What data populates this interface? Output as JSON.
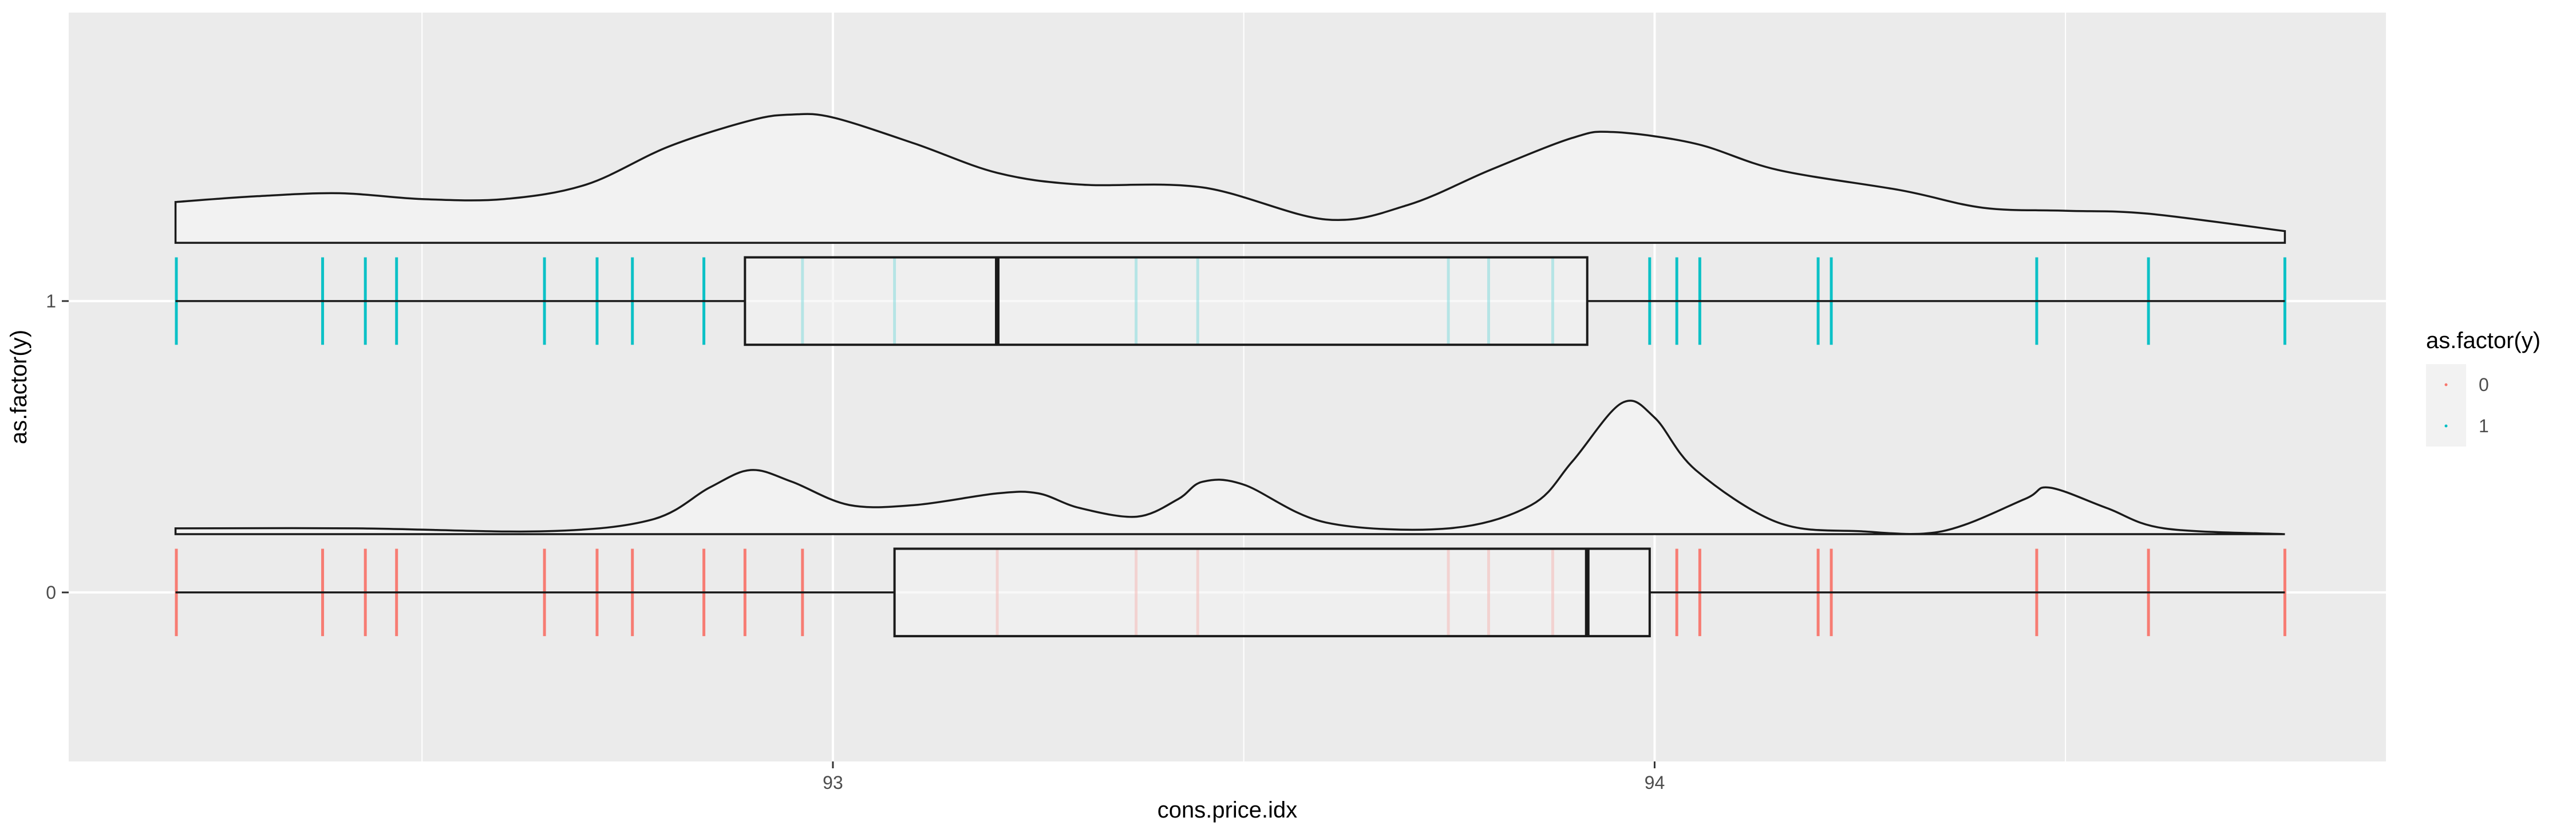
{
  "chart_data": {
    "type": "boxplot-with-density-and-jitter",
    "xlabel": "cons.price.idx",
    "ylabel": "as.factor(y)",
    "x_ticks": [
      93,
      94
    ],
    "x_tick_labels": [
      "93",
      "94"
    ],
    "y_categories": [
      "0",
      "1"
    ],
    "xlim": [
      92.07,
      94.89
    ],
    "ylim": [
      -0.58,
      1.99
    ],
    "grid": true,
    "legend": {
      "title": "as.factor(y)",
      "position": "right",
      "entries": [
        {
          "label": "0",
          "color": "#F8766D"
        },
        {
          "label": "1",
          "color": "#00BFC4"
        }
      ]
    },
    "series": [
      {
        "name": "0",
        "color": "#F8766D",
        "boxplot": {
          "min": 92.2,
          "q1": 93.075,
          "median": 93.918,
          "q3": 93.994,
          "max": 94.767
        },
        "jitter_x": [
          92.201,
          92.379,
          92.431,
          92.469,
          92.649,
          92.713,
          92.756,
          92.843,
          92.893,
          92.963,
          93.2,
          93.369,
          93.444,
          93.749,
          93.798,
          93.876,
          94.027,
          94.055,
          94.199,
          94.215,
          94.465,
          94.601,
          94.767
        ],
        "density_x": [
          92.2,
          92.42,
          92.65,
          92.78,
          92.85,
          92.9,
          92.95,
          93.02,
          93.1,
          93.2,
          93.25,
          93.3,
          93.37,
          93.42,
          93.45,
          93.5,
          93.6,
          93.75,
          93.85,
          93.9,
          93.96,
          94.0,
          94.05,
          94.15,
          94.25,
          94.35,
          94.45,
          94.48,
          94.55,
          94.62,
          94.767
        ],
        "density_y": [
          0.22,
          0.22,
          0.21,
          0.25,
          0.36,
          0.42,
          0.38,
          0.3,
          0.3,
          0.34,
          0.34,
          0.29,
          0.26,
          0.32,
          0.38,
          0.37,
          0.24,
          0.22,
          0.3,
          0.45,
          0.65,
          0.6,
          0.42,
          0.24,
          0.21,
          0.21,
          0.32,
          0.36,
          0.29,
          0.22,
          0.2
        ]
      },
      {
        "name": "1",
        "color": "#00BFC4",
        "boxplot": {
          "min": 92.2,
          "q1": 92.893,
          "median": 93.2,
          "q3": 93.918,
          "max": 94.767
        },
        "jitter_x": [
          92.201,
          92.379,
          92.431,
          92.469,
          92.649,
          92.713,
          92.756,
          92.843,
          92.963,
          93.075,
          93.369,
          93.444,
          93.749,
          93.798,
          93.876,
          93.994,
          94.027,
          94.055,
          94.199,
          94.215,
          94.465,
          94.601,
          94.767
        ],
        "density_x": [
          92.2,
          92.3,
          92.4,
          92.5,
          92.6,
          92.7,
          92.8,
          92.9,
          92.95,
          93.0,
          93.1,
          93.2,
          93.3,
          93.45,
          93.6,
          93.7,
          93.8,
          93.9,
          93.95,
          94.05,
          94.15,
          94.3,
          94.4,
          94.5,
          94.6,
          94.767
        ],
        "density_y": [
          1.34,
          1.36,
          1.37,
          1.35,
          1.35,
          1.4,
          1.53,
          1.62,
          1.64,
          1.63,
          1.54,
          1.44,
          1.4,
          1.39,
          1.28,
          1.33,
          1.45,
          1.56,
          1.58,
          1.54,
          1.45,
          1.38,
          1.32,
          1.31,
          1.3,
          1.24
        ]
      }
    ]
  }
}
